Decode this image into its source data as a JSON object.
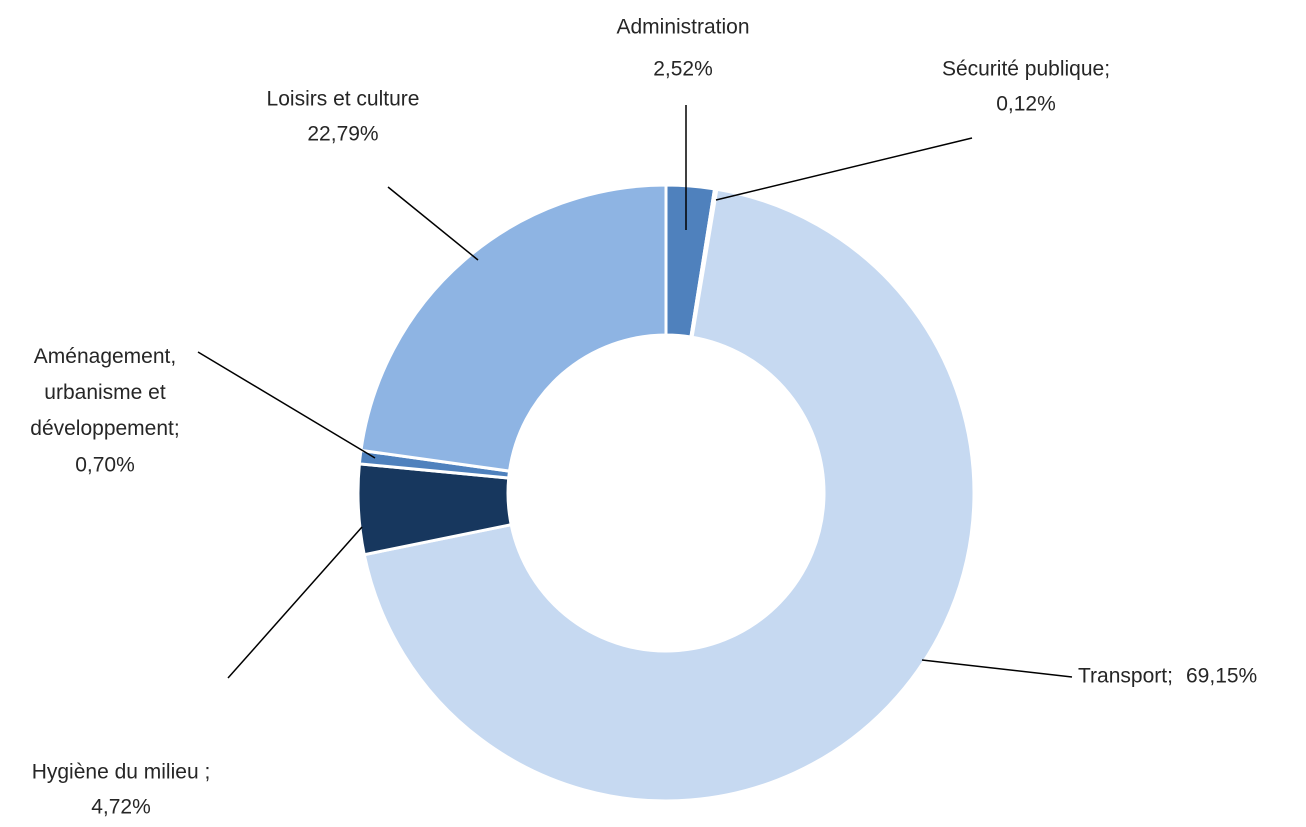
{
  "chart_data": {
    "type": "donut",
    "categories": [
      "Administration",
      "Sécurité publique;",
      "Transport;",
      "Hygiène du milieu  ;",
      "Aménagement,\nurbanisme et\ndéveloppement;",
      "Loisirs et culture"
    ],
    "values": [
      2.52,
      0.12,
      69.15,
      4.72,
      0.7,
      22.79
    ],
    "value_labels": [
      "2,52%",
      "0,12%",
      "69,15%",
      "4,72%",
      "0,70%",
      "22,79%"
    ],
    "colors": [
      "#4f81bd",
      "#4f81bd",
      "#c6d9f1",
      "#17375e",
      "#4f81bd",
      "#8eb4e3"
    ]
  }
}
